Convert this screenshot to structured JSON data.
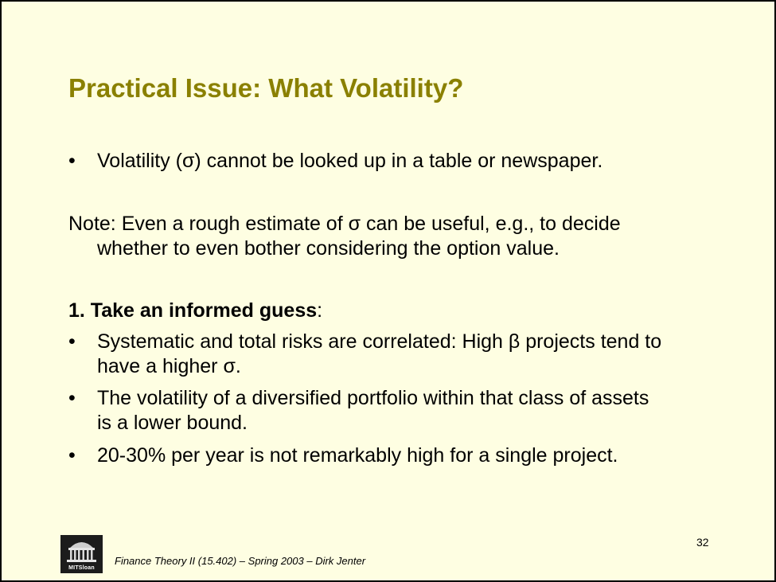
{
  "slide": {
    "title": "Practical Issue: What Volatility?",
    "bullet_marker": "•",
    "intro_bullet": "Volatility (σ) cannot be looked up in a table or newspaper.",
    "note": {
      "line1": "Note: Even a rough estimate of σ can be useful, e.g., to decide",
      "line2": "whether to even bother considering the option value."
    },
    "section": {
      "heading": "1. Take an informed guess",
      "colon": ":"
    },
    "bullets": [
      {
        "line1": "Systematic and total risks are correlated: High β projects tend to",
        "line2": "have a higher σ."
      },
      {
        "line1": "The volatility of a diversified portfolio within that class of assets",
        "line2": "is a lower bound."
      },
      {
        "line1": "20-30% per year is not remarkably high for a single project."
      }
    ]
  },
  "footer": {
    "page_number": "32",
    "course_text": "Finance Theory II (15.402) – Spring 2003 – Dirk Jenter",
    "logo_text": "MITSloan"
  },
  "colors": {
    "background": "#fefee2",
    "title": "#8a8000",
    "border": "#000000"
  }
}
